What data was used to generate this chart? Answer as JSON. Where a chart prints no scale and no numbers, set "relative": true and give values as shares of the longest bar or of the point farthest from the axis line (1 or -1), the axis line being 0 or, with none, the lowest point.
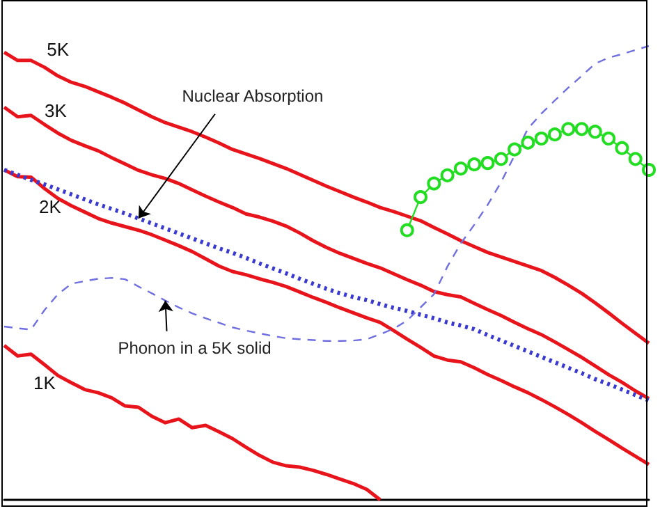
{
  "chart_data": {
    "type": "line",
    "relative": true,
    "categories": [
      null,
      null,
      null,
      null,
      null,
      null,
      null,
      null,
      null,
      null,
      null,
      null,
      null,
      null,
      null,
      null,
      null,
      null,
      null,
      null,
      null,
      null,
      null,
      null,
      null,
      null,
      null,
      null,
      null,
      null,
      null,
      null,
      null,
      null,
      null,
      null,
      null,
      null,
      null,
      null,
      null,
      null,
      null,
      null,
      null,
      null,
      null,
      null,
      null
    ],
    "series": [
      {
        "name": "5K",
        "color": "#e8141c",
        "line_style": "solid",
        "marker": "none",
        "values": [
          0.986,
          0.968,
          0.968,
          0.953,
          0.934,
          0.92,
          0.911,
          0.899,
          0.887,
          0.874,
          0.859,
          0.844,
          0.831,
          0.821,
          0.811,
          0.799,
          0.786,
          0.772,
          0.762,
          0.752,
          0.741,
          0.73,
          0.717,
          0.704,
          0.691,
          0.679,
          0.667,
          0.656,
          0.644,
          0.635,
          0.625,
          0.615,
          0.6,
          0.586,
          0.571,
          0.558,
          0.545,
          0.535,
          0.525,
          0.515,
          0.505,
          0.49,
          0.473,
          0.455,
          0.434,
          0.412,
          0.389,
          0.367,
          0.345
        ]
      },
      {
        "name": "3K",
        "color": "#e8141c",
        "line_style": "solid",
        "marker": "none",
        "values": [
          0.865,
          0.844,
          0.847,
          0.827,
          0.808,
          0.792,
          0.78,
          0.769,
          0.754,
          0.74,
          0.726,
          0.716,
          0.708,
          0.697,
          0.683,
          0.669,
          0.656,
          0.644,
          0.63,
          0.623,
          0.614,
          0.603,
          0.588,
          0.571,
          0.556,
          0.543,
          0.532,
          0.521,
          0.511,
          0.498,
          0.485,
          0.473,
          0.459,
          0.452,
          0.447,
          0.433,
          0.419,
          0.406,
          0.391,
          0.377,
          0.364,
          0.348,
          0.331,
          0.314,
          0.295,
          0.276,
          0.259,
          0.24,
          0.223
        ]
      },
      {
        "name": "2K",
        "color": "#e8141c",
        "line_style": "solid",
        "marker": "none",
        "values": [
          0.727,
          0.712,
          0.711,
          0.686,
          0.664,
          0.648,
          0.634,
          0.62,
          0.61,
          0.602,
          0.594,
          0.584,
          0.572,
          0.56,
          0.547,
          0.531,
          0.515,
          0.503,
          0.496,
          0.487,
          0.479,
          0.47,
          0.458,
          0.446,
          0.435,
          0.423,
          0.412,
          0.401,
          0.391,
          0.373,
          0.354,
          0.336,
          0.317,
          0.308,
          0.304,
          0.291,
          0.276,
          0.263,
          0.249,
          0.236,
          0.221,
          0.205,
          0.188,
          0.17,
          0.151,
          0.133,
          0.114,
          0.096,
          0.078
        ]
      },
      {
        "name": "1K",
        "color": "#e8141c",
        "line_style": "solid",
        "marker": "none",
        "values": [
          0.34,
          0.317,
          0.321,
          0.298,
          0.274,
          0.258,
          0.243,
          0.236,
          0.225,
          0.207,
          0.204,
          0.184,
          0.17,
          0.178,
          0.159,
          0.164,
          0.15,
          0.135,
          0.116,
          0.098,
          0.083,
          0.075,
          0.072,
          0.065,
          0.056,
          0.046,
          0.036,
          0.023,
          0,
          null,
          null,
          null,
          null,
          null,
          null,
          null,
          null,
          null,
          null,
          null,
          null,
          null,
          null,
          null,
          null,
          null,
          null,
          null,
          null
        ]
      },
      {
        "color": "#3a3ad0",
        "line_style": "dotted",
        "marker": "none",
        "values": [
          0.727,
          0.716,
          0.705,
          0.695,
          0.684,
          0.673,
          0.662,
          0.651,
          0.641,
          0.631,
          0.62,
          0.609,
          0.598,
          0.587,
          0.576,
          0.565,
          0.554,
          0.544,
          0.533,
          0.521,
          0.51,
          0.499,
          0.487,
          0.476,
          0.465,
          0.455,
          0.447,
          0.44,
          0.431,
          0.423,
          0.416,
          0.408,
          0.4,
          0.391,
          0.384,
          0.376,
          0.363,
          0.351,
          0.339,
          0.327,
          0.315,
          0.303,
          0.291,
          0.279,
          0.266,
          0.255,
          0.243,
          0.231,
          0.219
        ]
      },
      {
        "color": "#6f6fe0",
        "line_style": "dashed",
        "marker": "none",
        "values": [
          0.382,
          0.378,
          0.375,
          0.418,
          0.453,
          0.476,
          0.482,
          0.487,
          0.489,
          0.486,
          0.47,
          0.455,
          0.439,
          0.424,
          0.411,
          0.4,
          0.39,
          0.38,
          0.373,
          0.367,
          0.361,
          0.356,
          0.354,
          0.352,
          0.35,
          0.35,
          0.351,
          0.354,
          0.365,
          0.377,
          0.395,
          0.424,
          0.453,
          0.514,
          0.565,
          0.606,
          0.65,
          0.7,
          0.759,
          0.818,
          0.851,
          0.88,
          0.908,
          0.934,
          0.961,
          0.974,
          0.982,
          0.991,
          1
        ]
      },
      {
        "color": "#22dd22",
        "line_style": "solid",
        "marker": "circle",
        "values": [
          null,
          null,
          null,
          null,
          null,
          null,
          null,
          null,
          null,
          null,
          null,
          null,
          null,
          null,
          null,
          null,
          null,
          null,
          null,
          null,
          null,
          null,
          null,
          null,
          null,
          null,
          null,
          null,
          null,
          null,
          0.594,
          0.667,
          0.697,
          0.715,
          0.73,
          0.739,
          0.742,
          0.751,
          0.772,
          0.787,
          0.796,
          0.805,
          0.817,
          0.817,
          0.811,
          0.796,
          0.775,
          0.751,
          0.727
        ]
      }
    ],
    "annotations": [
      "Nuclear Absorption",
      "Phonon in a 5K solid"
    ]
  }
}
